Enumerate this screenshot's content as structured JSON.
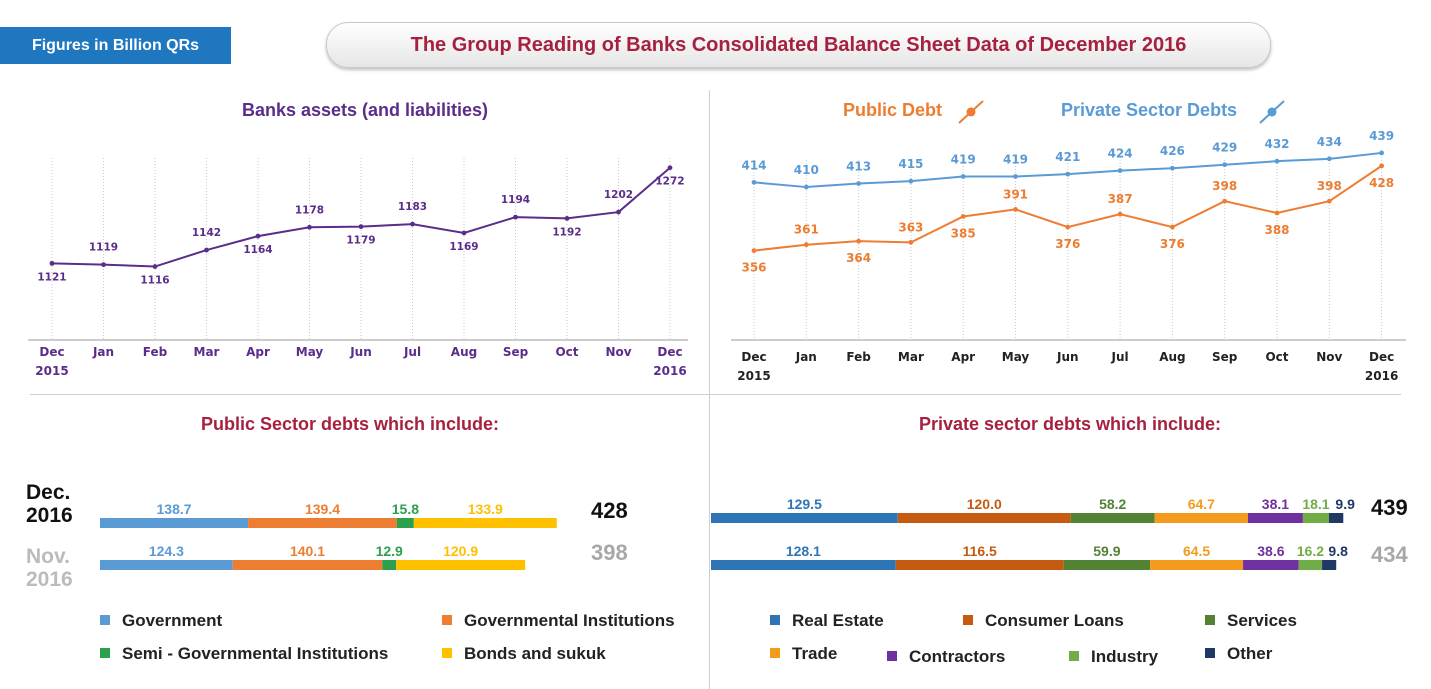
{
  "header": {
    "badge": "Figures in Billion QRs",
    "title": "The Group Reading of Banks Consolidated Balance Sheet Data of December 2016"
  },
  "colors": {
    "assets": "#5b2d8a",
    "public": "#ed7d31",
    "private": "#5b9bd5",
    "maroon": "#a6203f",
    "gov": "#5b9bd5",
    "gov_inst": "#ed7d31",
    "semi_gov": "#2ca04f",
    "bonds": "#ffc000",
    "real_estate": "#2e75b6",
    "consumer": "#c55a11",
    "services": "#548235",
    "trade": "#f49b1d",
    "contractors": "#7030a0",
    "industry": "#70ad47",
    "other": "#1f3864"
  },
  "sections": {
    "assets_title": "Banks assets (and liabilities)",
    "public_debt_label": "Public Debt",
    "private_debt_label": "Private Sector Debts",
    "public_sector_title": "Public Sector debts which include:",
    "private_sector_title": "Private sector debts which include:"
  },
  "chart_data": [
    {
      "type": "line",
      "title": "Banks assets (and liabilities)",
      "categories": [
        "Dec 2015",
        "Jan",
        "Feb",
        "Mar",
        "Apr",
        "May",
        "Jun",
        "Jul",
        "Aug",
        "Sep",
        "Oct",
        "Nov",
        "Dec 2016"
      ],
      "series": [
        {
          "values": [
            1121,
            1119,
            1116,
            1142,
            1164,
            1178,
            1179,
            1183,
            1169,
            1194,
            1192,
            1202,
            1272
          ]
        }
      ],
      "ylim": [
        1000,
        1300
      ]
    },
    {
      "type": "line",
      "categories": [
        "Dec 2015",
        "Jan",
        "Feb",
        "Mar",
        "Apr",
        "May",
        "Jun",
        "Jul",
        "Aug",
        "Sep",
        "Oct",
        "Nov",
        "Dec 2016"
      ],
      "series": [
        {
          "name": "Private Sector Debts",
          "values": [
            414,
            410,
            413,
            415,
            419,
            419,
            421,
            424,
            426,
            429,
            432,
            434,
            439
          ]
        },
        {
          "name": "Public Debt",
          "values": [
            356,
            361,
            364,
            363,
            385,
            391,
            376,
            387,
            376,
            398,
            388,
            398,
            428
          ]
        }
      ],
      "ylim": [
        280,
        450
      ]
    },
    {
      "type": "bar",
      "stacked": true,
      "orientation": "horizontal",
      "title": "Public Sector debts which include:",
      "categories": [
        "Dec. 2016",
        "Nov. 2016"
      ],
      "totals": [
        428,
        398
      ],
      "series": [
        {
          "name": "Government",
          "values": [
            138.7,
            124.3
          ]
        },
        {
          "name": "Governmental Institutions",
          "values": [
            139.4,
            140.1
          ]
        },
        {
          "name": "Semi - Governmental Institutions",
          "values": [
            15.8,
            12.9
          ]
        },
        {
          "name": "Bonds and sukuk",
          "values": [
            133.9,
            120.9
          ]
        }
      ]
    },
    {
      "type": "bar",
      "stacked": true,
      "orientation": "horizontal",
      "title": "Private sector debts which include:",
      "categories": [
        "Dec. 2016",
        "Nov. 2016"
      ],
      "totals": [
        439,
        434
      ],
      "series": [
        {
          "name": "Real Estate",
          "values": [
            129.5,
            128.1
          ]
        },
        {
          "name": "Consumer Loans",
          "values": [
            120.0,
            116.5
          ]
        },
        {
          "name": "Services",
          "values": [
            58.2,
            59.9
          ]
        },
        {
          "name": "Trade",
          "values": [
            64.7,
            64.5
          ]
        },
        {
          "name": "Contractors",
          "values": [
            38.1,
            38.6
          ]
        },
        {
          "name": "Industry",
          "values": [
            18.1,
            16.2
          ]
        },
        {
          "name": "Other",
          "values": [
            9.9,
            9.8
          ]
        }
      ]
    }
  ]
}
